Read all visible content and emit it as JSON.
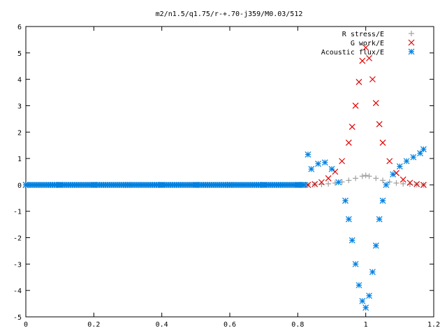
{
  "chart_data": {
    "type": "scatter",
    "title": "m2/n1.5/q1.75/r-+.70-j359/M0.03/512",
    "xlabel": "",
    "ylabel": "",
    "xlim": [
      0,
      1.2
    ],
    "ylim": [
      -5,
      6
    ],
    "xticks": [
      "0",
      "0.2",
      "0.4",
      "0.6",
      "0.8",
      "1",
      "1.2"
    ],
    "yticks": [
      "-5",
      "-4",
      "-3",
      "-2",
      "-1",
      "0",
      "1",
      "2",
      "3",
      "4",
      "5",
      "6"
    ],
    "grid": false,
    "legend_position": "top-right",
    "series": [
      {
        "name": "R stress/E",
        "marker": "+",
        "color": "#a0a0a0",
        "x": [
          0.83,
          0.85,
          0.87,
          0.89,
          0.91,
          0.93,
          0.95,
          0.97,
          0.99,
          1.0,
          1.01,
          1.03,
          1.05,
          1.07,
          1.09,
          1.11,
          1.13,
          1.15,
          1.17
        ],
        "y": [
          0.0,
          0.01,
          0.02,
          0.04,
          0.07,
          0.11,
          0.17,
          0.25,
          0.33,
          0.36,
          0.33,
          0.25,
          0.17,
          0.11,
          0.07,
          0.04,
          0.02,
          0.01,
          0.0
        ]
      },
      {
        "name": "G work/E",
        "marker": "x",
        "color": "#e00000",
        "x": [
          0.83,
          0.85,
          0.87,
          0.89,
          0.91,
          0.93,
          0.95,
          0.96,
          0.97,
          0.98,
          0.99,
          1.0,
          1.01,
          1.02,
          1.03,
          1.04,
          1.05,
          1.07,
          1.09,
          1.11,
          1.13,
          1.15,
          1.17
        ],
        "y": [
          0.0,
          0.03,
          0.1,
          0.25,
          0.5,
          0.9,
          1.6,
          2.2,
          3.0,
          3.9,
          4.7,
          5.2,
          4.8,
          4.0,
          3.1,
          2.3,
          1.6,
          0.9,
          0.45,
          0.2,
          0.08,
          0.03,
          0.0
        ]
      },
      {
        "name": "Acoustic flux/E",
        "marker": "*",
        "color": "#0080e0",
        "x": [
          0.0,
          0.1,
          0.2,
          0.3,
          0.4,
          0.5,
          0.6,
          0.7,
          0.8,
          0.82,
          0.83,
          0.84,
          0.86,
          0.88,
          0.9,
          0.92,
          0.94,
          0.95,
          0.96,
          0.97,
          0.98,
          0.99,
          1.0,
          1.01,
          1.02,
          1.03,
          1.04,
          1.05,
          1.06,
          1.08,
          1.1,
          1.12,
          1.14,
          1.16,
          1.17
        ],
        "y": [
          0.0,
          0.0,
          0.0,
          0.0,
          0.0,
          0.0,
          0.0,
          0.0,
          0.0,
          0.0,
          1.15,
          0.6,
          0.8,
          0.85,
          0.6,
          0.1,
          -0.6,
          -1.3,
          -2.1,
          -3.0,
          -3.8,
          -4.4,
          -4.65,
          -4.2,
          -3.3,
          -2.3,
          -1.3,
          -0.6,
          0.0,
          0.4,
          0.7,
          0.9,
          1.05,
          1.2,
          1.35
        ]
      }
    ]
  }
}
